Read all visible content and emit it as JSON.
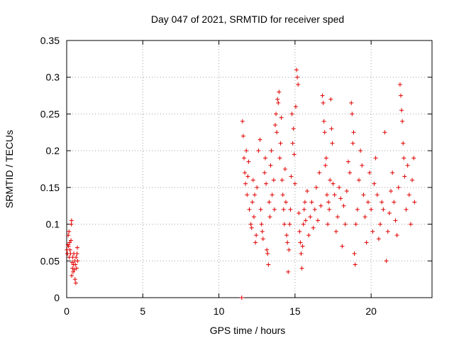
{
  "chart_data": {
    "type": "scatter",
    "title": "Day 047 of 2021, SRMTID for receiver sped",
    "xlabel": "GPS time / hours",
    "ylabel": "SRMTID / TECUs",
    "xlim": [
      0,
      24
    ],
    "ylim": [
      0,
      0.35
    ],
    "xticks": [
      0,
      5,
      10,
      15,
      20
    ],
    "yticks": [
      0,
      0.05,
      0.1,
      0.15,
      0.2,
      0.25,
      0.3,
      0.35
    ],
    "xtick_labels": [
      "0",
      "5",
      "10",
      "15",
      "20"
    ],
    "ytick_labels": [
      "0",
      "0.05",
      "0.1",
      "0.15",
      "0.2",
      "0.25",
      "0.3",
      "0.35"
    ],
    "grid": true,
    "marker": "+",
    "color": "#e00000",
    "series": [
      {
        "name": "SRMTID",
        "points": [
          [
            0.02,
            0.065
          ],
          [
            0.05,
            0.06
          ],
          [
            0.08,
            0.072
          ],
          [
            0.1,
            0.085
          ],
          [
            0.12,
            0.07
          ],
          [
            0.15,
            0.09
          ],
          [
            0.17,
            0.055
          ],
          [
            0.2,
            0.075
          ],
          [
            0.22,
            0.065
          ],
          [
            0.25,
            0.06
          ],
          [
            0.28,
            0.078
          ],
          [
            0.3,
            0.1
          ],
          [
            0.32,
            0.105
          ],
          [
            0.33,
            0.03
          ],
          [
            0.35,
            0.048
          ],
          [
            0.38,
            0.04
          ],
          [
            0.4,
            0.055
          ],
          [
            0.42,
            0.035
          ],
          [
            0.45,
            0.045
          ],
          [
            0.47,
            0.06
          ],
          [
            0.5,
            0.038
          ],
          [
            0.52,
            0.05
          ],
          [
            0.55,
            0.025
          ],
          [
            0.57,
            0.045
          ],
          [
            0.6,
            0.02
          ],
          [
            0.62,
            0.055
          ],
          [
            0.65,
            0.04
          ],
          [
            0.68,
            0.06
          ],
          [
            0.7,
            0.068
          ],
          [
            0.72,
            0.05
          ],
          [
            11.5,
            0.0
          ],
          [
            11.55,
            0.24
          ],
          [
            11.6,
            0.22
          ],
          [
            11.65,
            0.19
          ],
          [
            11.7,
            0.17
          ],
          [
            11.75,
            0.155
          ],
          [
            11.8,
            0.2
          ],
          [
            11.85,
            0.14
          ],
          [
            11.9,
            0.165
          ],
          [
            11.95,
            0.185
          ],
          [
            12.0,
            0.12
          ],
          [
            12.1,
            0.1
          ],
          [
            12.15,
            0.095
          ],
          [
            12.2,
            0.13
          ],
          [
            12.25,
            0.16
          ],
          [
            12.3,
            0.11
          ],
          [
            12.35,
            0.14
          ],
          [
            12.4,
            0.075
          ],
          [
            12.45,
            0.085
          ],
          [
            12.5,
            0.15
          ],
          [
            12.6,
            0.2
          ],
          [
            12.7,
            0.215
          ],
          [
            12.75,
            0.12
          ],
          [
            12.8,
            0.1
          ],
          [
            12.85,
            0.09
          ],
          [
            12.9,
            0.08
          ],
          [
            13.0,
            0.17
          ],
          [
            13.05,
            0.19
          ],
          [
            13.1,
            0.155
          ],
          [
            13.15,
            0.065
          ],
          [
            13.2,
            0.06
          ],
          [
            13.25,
            0.045
          ],
          [
            13.3,
            0.13
          ],
          [
            13.35,
            0.11
          ],
          [
            13.4,
            0.18
          ],
          [
            13.45,
            0.2
          ],
          [
            13.5,
            0.14
          ],
          [
            13.6,
            0.16
          ],
          [
            13.65,
            0.12
          ],
          [
            13.7,
            0.235
          ],
          [
            13.75,
            0.25
          ],
          [
            13.8,
            0.225
          ],
          [
            13.85,
            0.27
          ],
          [
            13.9,
            0.265
          ],
          [
            13.95,
            0.28
          ],
          [
            14.0,
            0.19
          ],
          [
            14.05,
            0.21
          ],
          [
            14.1,
            0.245
          ],
          [
            14.15,
            0.16
          ],
          [
            14.2,
            0.14
          ],
          [
            14.25,
            0.12
          ],
          [
            14.3,
            0.1
          ],
          [
            14.35,
            0.175
          ],
          [
            14.4,
            0.13
          ],
          [
            14.45,
            0.085
          ],
          [
            14.5,
            0.075
          ],
          [
            14.55,
            0.035
          ],
          [
            14.6,
            0.065
          ],
          [
            14.65,
            0.1
          ],
          [
            14.7,
            0.12
          ],
          [
            14.75,
            0.165
          ],
          [
            14.8,
            0.25
          ],
          [
            14.85,
            0.21
          ],
          [
            14.9,
            0.23
          ],
          [
            14.95,
            0.195
          ],
          [
            15.0,
            0.155
          ],
          [
            15.05,
            0.26
          ],
          [
            15.1,
            0.31
          ],
          [
            15.15,
            0.3
          ],
          [
            15.2,
            0.29
          ],
          [
            15.25,
            0.115
          ],
          [
            15.3,
            0.09
          ],
          [
            15.35,
            0.075
          ],
          [
            15.4,
            0.06
          ],
          [
            15.45,
            0.04
          ],
          [
            15.5,
            0.07
          ],
          [
            15.55,
            0.1
          ],
          [
            15.6,
            0.12
          ],
          [
            15.65,
            0.13
          ],
          [
            15.7,
            0.105
          ],
          [
            15.8,
            0.145
          ],
          [
            15.9,
            0.085
          ],
          [
            16.0,
            0.11
          ],
          [
            16.1,
            0.13
          ],
          [
            16.2,
            0.095
          ],
          [
            16.3,
            0.12
          ],
          [
            16.4,
            0.15
          ],
          [
            16.5,
            0.105
          ],
          [
            16.6,
            0.17
          ],
          [
            16.7,
            0.125
          ],
          [
            16.8,
            0.275
          ],
          [
            16.85,
            0.265
          ],
          [
            16.9,
            0.24
          ],
          [
            16.95,
            0.225
          ],
          [
            17.0,
            0.18
          ],
          [
            17.05,
            0.19
          ],
          [
            17.1,
            0.14
          ],
          [
            17.15,
            0.1
          ],
          [
            17.2,
            0.13
          ],
          [
            17.25,
            0.12
          ],
          [
            17.3,
            0.16
          ],
          [
            17.35,
            0.27
          ],
          [
            17.4,
            0.23
          ],
          [
            17.45,
            0.21
          ],
          [
            17.5,
            0.155
          ],
          [
            17.6,
            0.14
          ],
          [
            17.7,
            0.09
          ],
          [
            17.8,
            0.11
          ],
          [
            17.9,
            0.15
          ],
          [
            18.0,
            0.135
          ],
          [
            18.1,
            0.07
          ],
          [
            18.2,
            0.125
          ],
          [
            18.3,
            0.1
          ],
          [
            18.4,
            0.145
          ],
          [
            18.5,
            0.185
          ],
          [
            18.6,
            0.17
          ],
          [
            18.7,
            0.265
          ],
          [
            18.75,
            0.25
          ],
          [
            18.8,
            0.21
          ],
          [
            18.85,
            0.225
          ],
          [
            18.9,
            0.06
          ],
          [
            18.95,
            0.045
          ],
          [
            19.0,
            0.1
          ],
          [
            19.1,
            0.12
          ],
          [
            19.2,
            0.16
          ],
          [
            19.3,
            0.2
          ],
          [
            19.4,
            0.18
          ],
          [
            19.5,
            0.14
          ],
          [
            19.6,
            0.11
          ],
          [
            19.7,
            0.075
          ],
          [
            19.8,
            0.13
          ],
          [
            19.9,
            0.17
          ],
          [
            20.0,
            0.12
          ],
          [
            20.1,
            0.09
          ],
          [
            20.2,
            0.155
          ],
          [
            20.3,
            0.19
          ],
          [
            20.4,
            0.14
          ],
          [
            20.5,
            0.08
          ],
          [
            20.6,
            0.1
          ],
          [
            20.7,
            0.13
          ],
          [
            20.8,
            0.12
          ],
          [
            20.9,
            0.225
          ],
          [
            21.0,
            0.05
          ],
          [
            21.1,
            0.09
          ],
          [
            21.2,
            0.115
          ],
          [
            21.3,
            0.145
          ],
          [
            21.4,
            0.17
          ],
          [
            21.5,
            0.13
          ],
          [
            21.6,
            0.105
          ],
          [
            21.7,
            0.085
          ],
          [
            21.8,
            0.15
          ],
          [
            21.9,
            0.29
          ],
          [
            21.95,
            0.275
          ],
          [
            22.0,
            0.255
          ],
          [
            22.05,
            0.24
          ],
          [
            22.1,
            0.21
          ],
          [
            22.15,
            0.19
          ],
          [
            22.2,
            0.165
          ],
          [
            22.3,
            0.12
          ],
          [
            22.4,
            0.18
          ],
          [
            22.5,
            0.14
          ],
          [
            22.6,
            0.1
          ],
          [
            22.7,
            0.16
          ],
          [
            22.8,
            0.19
          ],
          [
            22.85,
            0.13
          ]
        ]
      }
    ]
  }
}
